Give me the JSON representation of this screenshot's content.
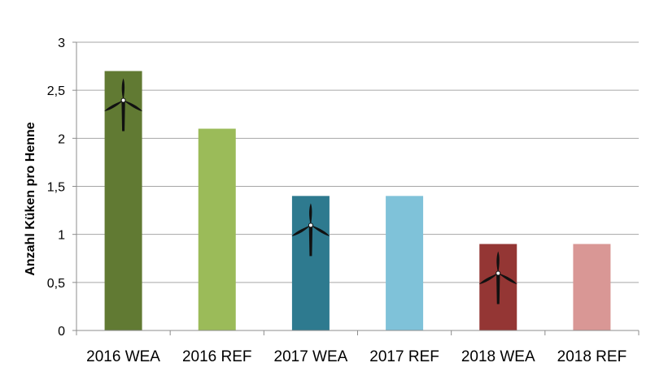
{
  "chart_data": {
    "type": "bar",
    "title": "",
    "xlabel": "",
    "ylabel": "Anzahl Küken pro Henne",
    "ylim": [
      0,
      3
    ],
    "yticks": [
      0,
      0.5,
      1,
      1.5,
      2,
      2.5,
      3
    ],
    "ytick_labels": [
      "0",
      "0,5",
      "1",
      "1,5",
      "2",
      "2,5",
      "3"
    ],
    "categories": [
      "2016 WEA",
      "2016 REF",
      "2017 WEA",
      "2017 REF",
      "2018 WEA",
      "2018 REF"
    ],
    "values": [
      2.7,
      2.1,
      1.4,
      1.4,
      0.9,
      0.9
    ],
    "colors": [
      "#617a33",
      "#9bbb59",
      "#2e7a8f",
      "#7fc2d9",
      "#943634",
      "#d99795"
    ],
    "turbine_icon": [
      true,
      false,
      true,
      false,
      true,
      false
    ],
    "icon_name": "wind-turbine-icon",
    "grid": true,
    "legend": "none"
  }
}
